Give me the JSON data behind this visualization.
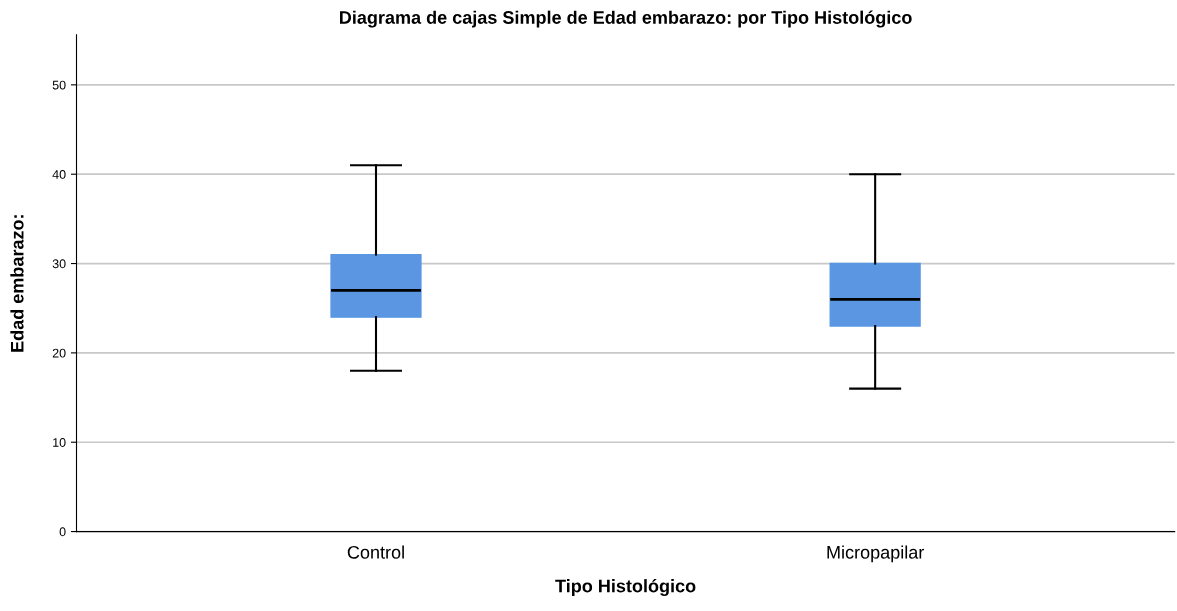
{
  "chart_data": {
    "type": "box",
    "title": "Diagrama de cajas Simple de Edad embarazo: por Tipo Histológico",
    "xlabel": "Tipo Histológico",
    "ylabel": "Edad embarazo:",
    "categories": [
      "Control",
      "Micropapilar"
    ],
    "boxes": [
      {
        "low": 18,
        "q1": 24,
        "median": 27,
        "q3": 31,
        "high": 41
      },
      {
        "low": 16,
        "q1": 23,
        "median": 26,
        "q3": 30,
        "high": 40
      }
    ],
    "color": "#5a96e2",
    "ylim": [
      0,
      55.6
    ],
    "yticks": [
      0,
      10,
      20,
      30,
      40,
      50
    ],
    "grid": "y",
    "legend": false
  }
}
